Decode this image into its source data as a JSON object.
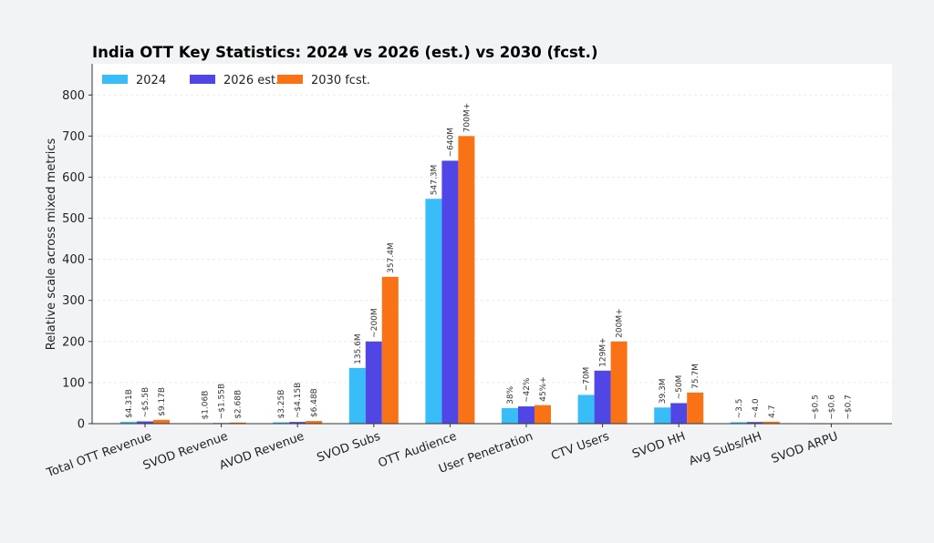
{
  "chart_data": {
    "type": "bar",
    "title": "India OTT Key Statistics: 2024 vs 2026 (est.) vs 2030 (fcst.)",
    "xlabel": "",
    "ylabel": "Relative scale across mixed metrics",
    "ylim": [
      0,
      876
    ],
    "yticks": [
      0,
      100,
      200,
      300,
      400,
      500,
      600,
      700,
      800
    ],
    "grid": true,
    "legend_position": "top-left",
    "categories": [
      "Total OTT Revenue",
      "SVOD Revenue",
      "AVOD Revenue",
      "SVOD Subs",
      "OTT Audience",
      "User Penetration",
      "CTV Users",
      "SVOD HH",
      "Avg Subs/HH",
      "SVOD ARPU"
    ],
    "series": [
      {
        "name": "2024",
        "color": "#38bdf8",
        "values": [
          4.31,
          1.06,
          3.25,
          135.6,
          547.3,
          38,
          70,
          39.3,
          3.5,
          0.5
        ],
        "labels": [
          "$4.31B",
          "$1.06B",
          "$3.25B",
          "135.6M",
          "547.3M",
          "38%",
          "~70M",
          "39.3M",
          "~3.5",
          "~$0.5"
        ]
      },
      {
        "name": "2026 est.",
        "color": "#4f46e5",
        "values": [
          5.5,
          1.55,
          4.15,
          200,
          640,
          42,
          129,
          50,
          4.0,
          0.6
        ],
        "labels": [
          "~$5.5B",
          "~$1.55B",
          "~$4.15B",
          "~200M",
          "~640M",
          "~42%",
          "129M+",
          "~50M",
          "~4.0",
          "~$0.6"
        ]
      },
      {
        "name": "2030 fcst.",
        "color": "#f97316",
        "values": [
          9.17,
          2.68,
          6.48,
          357.4,
          700,
          45,
          200,
          75.7,
          4.7,
          0.7
        ],
        "labels": [
          "$9.17B",
          "$2.68B",
          "$6.48B",
          "357.4M",
          "700M+",
          "45%+",
          "200M+",
          "75.7M",
          "4.7",
          "~$0.7"
        ]
      }
    ]
  }
}
